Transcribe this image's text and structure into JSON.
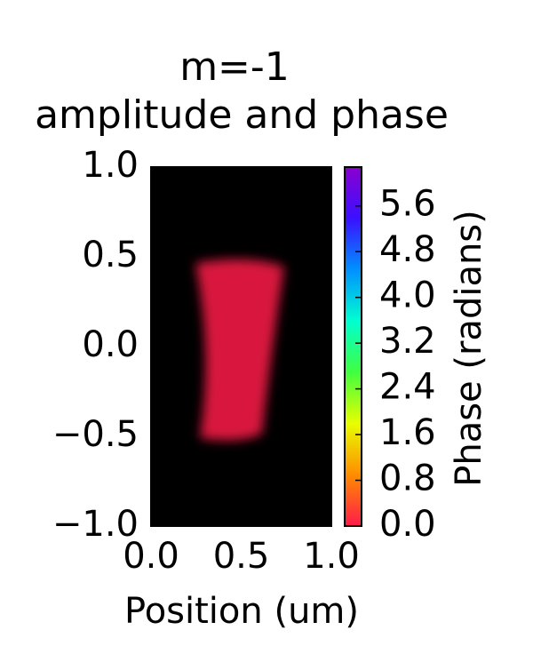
{
  "chart_data": {
    "type": "image",
    "title": "m=-1",
    "subtitle": "amplitude and phase",
    "xlabel": "Position (um)",
    "xlim": [
      0,
      1
    ],
    "xticks": [
      {
        "value": 0,
        "label": "0.0"
      },
      0.5,
      {
        "value": 1,
        "label": "1.0"
      }
    ],
    "ylim": [
      -1,
      1
    ],
    "yticks": [
      {
        "value": -1,
        "label": "−1.0"
      },
      {
        "value": -0.5,
        "label": "−0.5"
      },
      {
        "value": 0,
        "label": "0.0"
      },
      0.5,
      {
        "value": 1,
        "label": "1.0"
      }
    ],
    "background": "#000000",
    "colorbar": {
      "label": "Phase (radians)",
      "lim": [
        0,
        6.28
      ],
      "ticks": [
        {
          "value": 0,
          "label": "0.0"
        },
        0.8,
        1.6,
        2.4,
        3.2,
        {
          "value": 4,
          "label": "4.0"
        },
        4.8,
        5.6
      ],
      "colors": [
        "#ff1a4a",
        "#ff8c00",
        "#e8ff00",
        "#40ff40",
        "#00ffd0",
        "#0090ff",
        "#3a10ff",
        "#8a00d0"
      ]
    }
  }
}
